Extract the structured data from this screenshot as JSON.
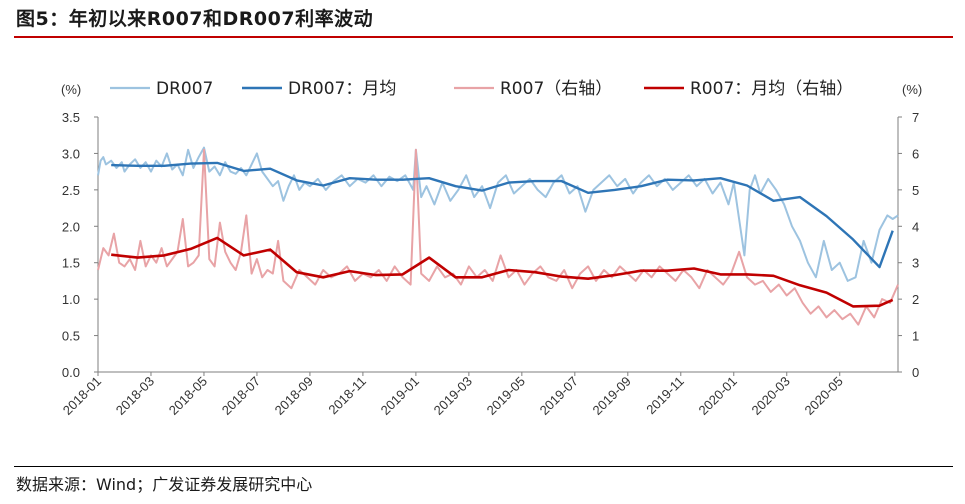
{
  "title": "图5：年初以来R007和DR007利率波动",
  "source": "数据来源：Wind；广发证券发展研究中心",
  "colors": {
    "dr007_daily": "#9dc3e0",
    "dr007_monthly": "#2e75b6",
    "r007_daily": "#e8a3a6",
    "r007_monthly": "#c00000"
  },
  "chart_data": {
    "type": "line",
    "left_unit": "(%)",
    "right_unit": "(%)",
    "ylim_left": [
      0,
      3.5
    ],
    "ylim_right": [
      0,
      7
    ],
    "left_ticks": [
      "3.5",
      "3.0",
      "2.5",
      "2.0",
      "1.5",
      "1.0",
      "0.5",
      "0.0"
    ],
    "right_ticks": [
      "7",
      "6",
      "5",
      "4",
      "3",
      "2",
      "1",
      "0"
    ],
    "x_ticks": [
      "2018-01",
      "2018-03",
      "2018-05",
      "2018-07",
      "2018-09",
      "2018-11",
      "2019-01",
      "2019-03",
      "2019-05",
      "2019-07",
      "2019-09",
      "2019-11",
      "2020-01",
      "2020-03",
      "2020-05"
    ],
    "x_range_months": [
      0,
      30.2
    ],
    "legend": [
      {
        "key": "dr007_daily",
        "label": "DR007"
      },
      {
        "key": "dr007_monthly",
        "label": "DR007：月均"
      },
      {
        "key": "r007_daily",
        "label": "R007（右轴）"
      },
      {
        "key": "r007_monthly",
        "label": "R007：月均（右轴）"
      }
    ],
    "series": [
      {
        "key": "dr007_daily",
        "name": "DR007",
        "axis": "left",
        "x": [
          0,
          0.1,
          0.2,
          0.3,
          0.5,
          0.7,
          0.9,
          1.0,
          1.2,
          1.4,
          1.6,
          1.8,
          2.0,
          2.2,
          2.4,
          2.6,
          2.8,
          3.0,
          3.2,
          3.4,
          3.6,
          3.8,
          4.0,
          4.2,
          4.4,
          4.6,
          4.8,
          5.0,
          5.2,
          5.4,
          5.6,
          5.8,
          6.0,
          6.2,
          6.4,
          6.6,
          6.8,
          7.0,
          7.2,
          7.4,
          7.6,
          7.8,
          8.0,
          8.3,
          8.6,
          8.9,
          9.2,
          9.5,
          9.8,
          10.1,
          10.4,
          10.7,
          11.0,
          11.3,
          11.6,
          11.9,
          12.0,
          12.2,
          12.4,
          12.7,
          13.0,
          13.3,
          13.6,
          13.9,
          14.2,
          14.5,
          14.8,
          15.1,
          15.4,
          15.7,
          16.0,
          16.3,
          16.6,
          16.9,
          17.2,
          17.5,
          17.8,
          18.1,
          18.4,
          18.7,
          19.0,
          19.3,
          19.6,
          19.9,
          20.2,
          20.5,
          20.8,
          21.1,
          21.4,
          21.7,
          22.0,
          22.3,
          22.6,
          22.9,
          23.2,
          23.5,
          23.8,
          24.0,
          24.2,
          24.4,
          24.6,
          24.8,
          25.0,
          25.3,
          25.6,
          25.9,
          26.2,
          26.5,
          26.8,
          27.1,
          27.4,
          27.7,
          28.0,
          28.3,
          28.6,
          28.9,
          29.2,
          29.5,
          29.8,
          30.0,
          30.2
        ],
        "values": [
          2.7,
          2.9,
          2.95,
          2.85,
          2.9,
          2.8,
          2.88,
          2.75,
          2.85,
          2.92,
          2.8,
          2.88,
          2.75,
          2.9,
          2.82,
          3.0,
          2.78,
          2.85,
          2.7,
          3.05,
          2.8,
          2.95,
          3.08,
          2.75,
          2.82,
          2.7,
          2.88,
          2.75,
          2.72,
          2.8,
          2.7,
          2.85,
          3.0,
          2.75,
          2.65,
          2.55,
          2.62,
          2.35,
          2.55,
          2.7,
          2.5,
          2.6,
          2.55,
          2.65,
          2.5,
          2.62,
          2.7,
          2.55,
          2.65,
          2.6,
          2.7,
          2.55,
          2.68,
          2.62,
          2.7,
          2.5,
          3.05,
          2.4,
          2.55,
          2.3,
          2.6,
          2.35,
          2.5,
          2.7,
          2.4,
          2.55,
          2.25,
          2.6,
          2.7,
          2.45,
          2.55,
          2.65,
          2.5,
          2.4,
          2.6,
          2.7,
          2.45,
          2.55,
          2.2,
          2.5,
          2.6,
          2.7,
          2.55,
          2.65,
          2.45,
          2.6,
          2.7,
          2.55,
          2.65,
          2.5,
          2.6,
          2.7,
          2.55,
          2.65,
          2.45,
          2.6,
          2.3,
          2.6,
          2.1,
          1.6,
          2.5,
          2.7,
          2.45,
          2.65,
          2.5,
          2.3,
          2.0,
          1.8,
          1.5,
          1.3,
          1.8,
          1.4,
          1.5,
          1.25,
          1.3,
          1.8,
          1.5,
          1.95,
          2.15,
          2.1,
          2.15
        ]
      },
      {
        "key": "dr007_monthly",
        "name": "DR007：月均",
        "axis": "left",
        "x": [
          0.5,
          1.5,
          2.5,
          3.5,
          4.5,
          5.5,
          6.5,
          7.5,
          8.5,
          9.5,
          10.5,
          11.5,
          12.5,
          13.5,
          14.5,
          15.5,
          16.5,
          17.5,
          18.5,
          19.5,
          20.5,
          21.5,
          22.5,
          23.5,
          24.5,
          25.5,
          26.5,
          27.5,
          28.5,
          29.5,
          30.0
        ],
        "values": [
          2.84,
          2.83,
          2.83,
          2.86,
          2.87,
          2.76,
          2.79,
          2.63,
          2.56,
          2.66,
          2.64,
          2.64,
          2.66,
          2.55,
          2.49,
          2.6,
          2.62,
          2.62,
          2.46,
          2.5,
          2.55,
          2.64,
          2.63,
          2.66,
          2.56,
          2.35,
          2.4,
          2.14,
          1.82,
          1.44,
          1.94
        ]
      },
      {
        "key": "r007_daily",
        "name": "R007（右轴）",
        "axis": "right",
        "x": [
          0,
          0.2,
          0.4,
          0.6,
          0.8,
          1.0,
          1.2,
          1.4,
          1.6,
          1.8,
          2.0,
          2.2,
          2.4,
          2.6,
          2.8,
          3.0,
          3.2,
          3.4,
          3.6,
          3.8,
          4.0,
          4.2,
          4.4,
          4.6,
          4.8,
          5.0,
          5.2,
          5.4,
          5.6,
          5.8,
          6.0,
          6.2,
          6.4,
          6.6,
          6.8,
          7.0,
          7.3,
          7.6,
          7.9,
          8.2,
          8.5,
          8.8,
          9.1,
          9.4,
          9.7,
          10.0,
          10.3,
          10.6,
          10.9,
          11.2,
          11.5,
          11.8,
          12.0,
          12.2,
          12.5,
          12.8,
          13.1,
          13.4,
          13.7,
          14.0,
          14.3,
          14.6,
          14.9,
          15.2,
          15.5,
          15.8,
          16.1,
          16.4,
          16.7,
          17.0,
          17.3,
          17.6,
          17.9,
          18.2,
          18.5,
          18.8,
          19.1,
          19.4,
          19.7,
          20.0,
          20.3,
          20.6,
          20.9,
          21.2,
          21.5,
          21.8,
          22.1,
          22.4,
          22.7,
          23.0,
          23.3,
          23.6,
          23.9,
          24.2,
          24.5,
          24.8,
          25.1,
          25.4,
          25.7,
          26.0,
          26.3,
          26.6,
          26.9,
          27.2,
          27.5,
          27.8,
          28.1,
          28.4,
          28.7,
          29.0,
          29.3,
          29.6,
          29.9,
          30.2
        ],
        "values": [
          2.8,
          3.4,
          3.2,
          3.8,
          3.0,
          2.9,
          3.1,
          2.8,
          3.6,
          2.9,
          3.2,
          3.0,
          3.4,
          2.9,
          3.1,
          3.3,
          4.2,
          2.9,
          3.0,
          3.2,
          6.1,
          3.1,
          2.9,
          4.1,
          3.3,
          3.0,
          2.8,
          3.3,
          4.3,
          2.7,
          3.1,
          2.6,
          2.8,
          2.7,
          3.6,
          2.5,
          2.3,
          2.8,
          2.6,
          2.4,
          2.8,
          2.6,
          2.7,
          2.9,
          2.5,
          2.7,
          2.6,
          2.8,
          2.5,
          2.9,
          2.6,
          2.4,
          6.1,
          2.7,
          2.5,
          2.9,
          2.6,
          2.7,
          2.4,
          2.9,
          2.6,
          2.8,
          2.5,
          3.2,
          2.6,
          2.8,
          2.4,
          2.7,
          2.9,
          2.6,
          2.5,
          2.8,
          2.3,
          2.7,
          2.9,
          2.5,
          2.8,
          2.6,
          2.9,
          2.7,
          2.5,
          2.8,
          2.6,
          2.9,
          2.7,
          2.5,
          2.8,
          2.6,
          2.3,
          2.8,
          2.6,
          2.4,
          2.7,
          3.3,
          2.6,
          2.4,
          2.5,
          2.2,
          2.4,
          2.1,
          2.3,
          1.9,
          1.6,
          1.8,
          1.5,
          1.7,
          1.45,
          1.6,
          1.3,
          1.8,
          1.5,
          2.0,
          1.9,
          2.4
        ]
      },
      {
        "key": "r007_monthly",
        "name": "R007：月均（右轴）",
        "axis": "right",
        "x": [
          0.5,
          1.5,
          2.5,
          3.5,
          4.5,
          5.5,
          6.5,
          7.5,
          8.5,
          9.5,
          10.5,
          11.5,
          12.5,
          13.5,
          14.5,
          15.5,
          16.5,
          17.5,
          18.5,
          19.5,
          20.5,
          21.5,
          22.5,
          23.5,
          24.5,
          25.5,
          26.5,
          27.5,
          28.5,
          29.5,
          30.0
        ],
        "values": [
          3.22,
          3.14,
          3.2,
          3.38,
          3.68,
          3.2,
          3.36,
          2.74,
          2.6,
          2.77,
          2.66,
          2.68,
          3.14,
          2.6,
          2.6,
          2.8,
          2.74,
          2.62,
          2.56,
          2.66,
          2.78,
          2.78,
          2.84,
          2.68,
          2.68,
          2.64,
          2.38,
          2.18,
          1.8,
          1.82,
          1.98
        ]
      }
    ]
  }
}
